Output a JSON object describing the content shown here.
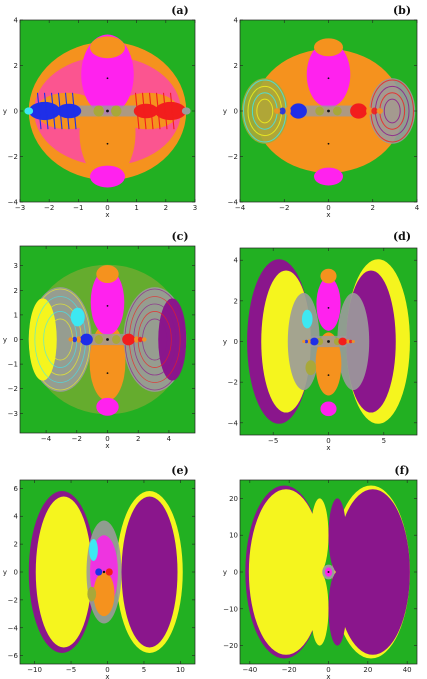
{
  "colors": {
    "background": "#22b022",
    "orange": "#f5921e",
    "magenta": "#ff22ee",
    "blue": "#1f2fe8",
    "red": "#f21d1d",
    "yellow": "#f5f51e",
    "purple": "#8a168c",
    "cyan": "#3de8f2",
    "olive": "#a8a83a",
    "gray": "#9b9b9b"
  },
  "chart_data": [
    {
      "type": "heatmap",
      "label": "(a)",
      "xlabel": "x",
      "ylabel": "y",
      "xlim": [
        -3,
        3
      ],
      "ylim": [
        -4,
        4
      ],
      "xticks": [
        -3,
        -2,
        -1,
        0,
        1,
        2,
        3
      ],
      "yticks": [
        -4,
        -2,
        0,
        2,
        4
      ],
      "xtick_labels": [
        "−3",
        "−2",
        "−1",
        "0",
        "1",
        "2",
        "3"
      ],
      "ytick_labels": [
        "−4",
        "−2",
        "0",
        "2",
        "4"
      ]
    },
    {
      "type": "heatmap",
      "label": "(b)",
      "xlabel": "x",
      "ylabel": "y",
      "xlim": [
        -4,
        4
      ],
      "ylim": [
        -4,
        4
      ],
      "xticks": [
        -4,
        -2,
        0,
        2,
        4
      ],
      "yticks": [
        -4,
        -2,
        0,
        2,
        4
      ],
      "xtick_labels": [
        "−4",
        "−2",
        "0",
        "2",
        "4"
      ],
      "ytick_labels": [
        "−4",
        "−2",
        "0",
        "2",
        "4"
      ]
    },
    {
      "type": "heatmap",
      "label": "(c)",
      "xlabel": "x",
      "ylabel": "y",
      "xlim": [
        -5.7,
        5.7
      ],
      "ylim": [
        -3.8,
        3.8
      ],
      "xticks": [
        -4,
        -2,
        0,
        2,
        4
      ],
      "yticks": [
        -3,
        -2,
        -1,
        0,
        1,
        2,
        3
      ],
      "xtick_labels": [
        "−4",
        "−2",
        "0",
        "2",
        "4"
      ],
      "ytick_labels": [
        "−3",
        "−2",
        "−1",
        "0",
        "1",
        "2",
        "3"
      ]
    },
    {
      "type": "heatmap",
      "label": "(d)",
      "xlabel": "x",
      "ylabel": "y",
      "xlim": [
        -8,
        8
      ],
      "ylim": [
        -4.6,
        4.6
      ],
      "xticks": [
        -5,
        0,
        5
      ],
      "yticks": [
        -4,
        -2,
        0,
        2,
        4
      ],
      "xtick_labels": [
        "−5",
        "0",
        "5"
      ],
      "ytick_labels": [
        "−4",
        "−2",
        "0",
        "2",
        "4"
      ]
    },
    {
      "type": "heatmap",
      "label": "(e)",
      "xlabel": "x",
      "ylabel": "y",
      "xlim": [
        -12,
        12
      ],
      "ylim": [
        -6.6,
        6.6
      ],
      "xticks": [
        -10,
        -5,
        0,
        5,
        10
      ],
      "yticks": [
        -6,
        -4,
        -2,
        0,
        2,
        4,
        6
      ],
      "xtick_labels": [
        "−10",
        "−5",
        "0",
        "5",
        "10"
      ],
      "ytick_labels": [
        "−6",
        "−4",
        "−2",
        "0",
        "2",
        "4",
        "6"
      ]
    },
    {
      "type": "heatmap",
      "label": "(f)",
      "xlabel": "x",
      "ylabel": "y",
      "xlim": [
        -45,
        45
      ],
      "ylim": [
        -25,
        25
      ],
      "xticks": [
        -40,
        -20,
        0,
        20,
        40
      ],
      "yticks": [
        -20,
        -10,
        0,
        10,
        20
      ],
      "xtick_labels": [
        "−40",
        "−20",
        "0",
        "20",
        "40"
      ],
      "ytick_labels": [
        "−20",
        "−10",
        "0",
        "10",
        "20"
      ]
    }
  ]
}
